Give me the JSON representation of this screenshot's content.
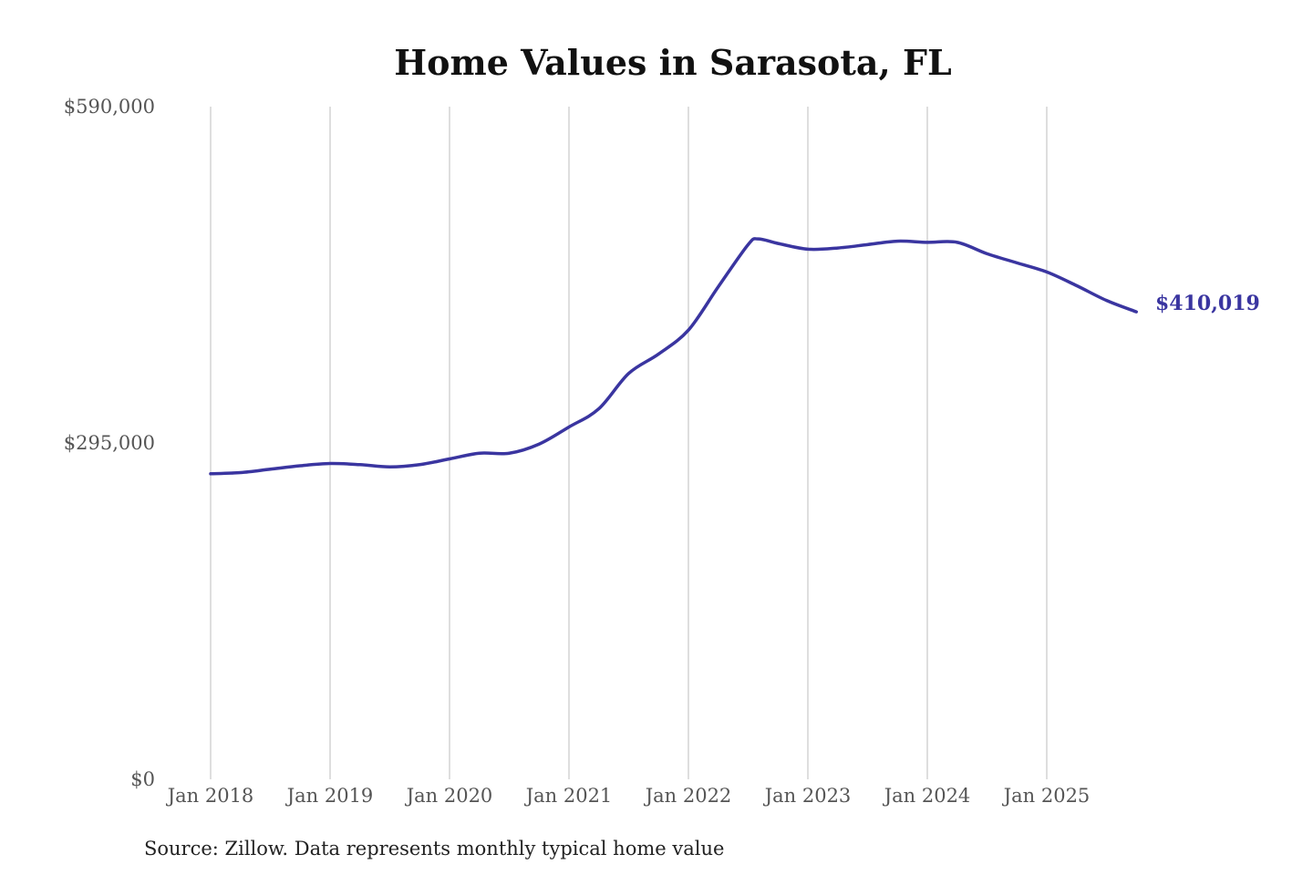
{
  "chart_data": {
    "type": "line",
    "title": "Home Values in Sarasota, FL",
    "source": "Source: Zillow. Data represents monthly typical home value",
    "xlabel": "",
    "ylabel": "",
    "ylim": [
      0,
      590000
    ],
    "y_ticks": [
      {
        "value": 0,
        "label": "$0"
      },
      {
        "value": 295000,
        "label": "$295,000"
      },
      {
        "value": 590000,
        "label": "$590,000"
      }
    ],
    "x_ticks": [
      {
        "date": "2018-01",
        "label": "Jan 2018"
      },
      {
        "date": "2019-01",
        "label": "Jan 2019"
      },
      {
        "date": "2020-01",
        "label": "Jan 2020"
      },
      {
        "date": "2021-01",
        "label": "Jan 2021"
      },
      {
        "date": "2022-01",
        "label": "Jan 2022"
      },
      {
        "date": "2023-01",
        "label": "Jan 2023"
      },
      {
        "date": "2024-01",
        "label": "Jan 2024"
      },
      {
        "date": "2025-01",
        "label": "Jan 2025"
      }
    ],
    "grid": "vertical",
    "line_color": "#3a35a0",
    "end_label": "$410,019",
    "x": [
      "2018-01",
      "2018-04",
      "2018-07",
      "2018-10",
      "2019-01",
      "2019-04",
      "2019-07",
      "2019-10",
      "2020-01",
      "2020-04",
      "2020-07",
      "2020-10",
      "2021-01",
      "2021-04",
      "2021-07",
      "2021-10",
      "2022-01",
      "2022-04",
      "2022-07",
      "2022-08",
      "2022-10",
      "2023-01",
      "2023-04",
      "2023-07",
      "2023-10",
      "2024-01",
      "2024-04",
      "2024-07",
      "2024-10",
      "2025-01",
      "2025-04",
      "2025-07",
      "2025-10"
    ],
    "values": [
      268000,
      269000,
      272000,
      275000,
      277000,
      276000,
      274000,
      276000,
      281000,
      286000,
      286000,
      294000,
      309000,
      325000,
      356000,
      373000,
      394000,
      432000,
      469000,
      474000,
      470000,
      465000,
      466000,
      469000,
      472000,
      471000,
      471000,
      461000,
      453000,
      445000,
      433000,
      420000,
      410019
    ]
  }
}
